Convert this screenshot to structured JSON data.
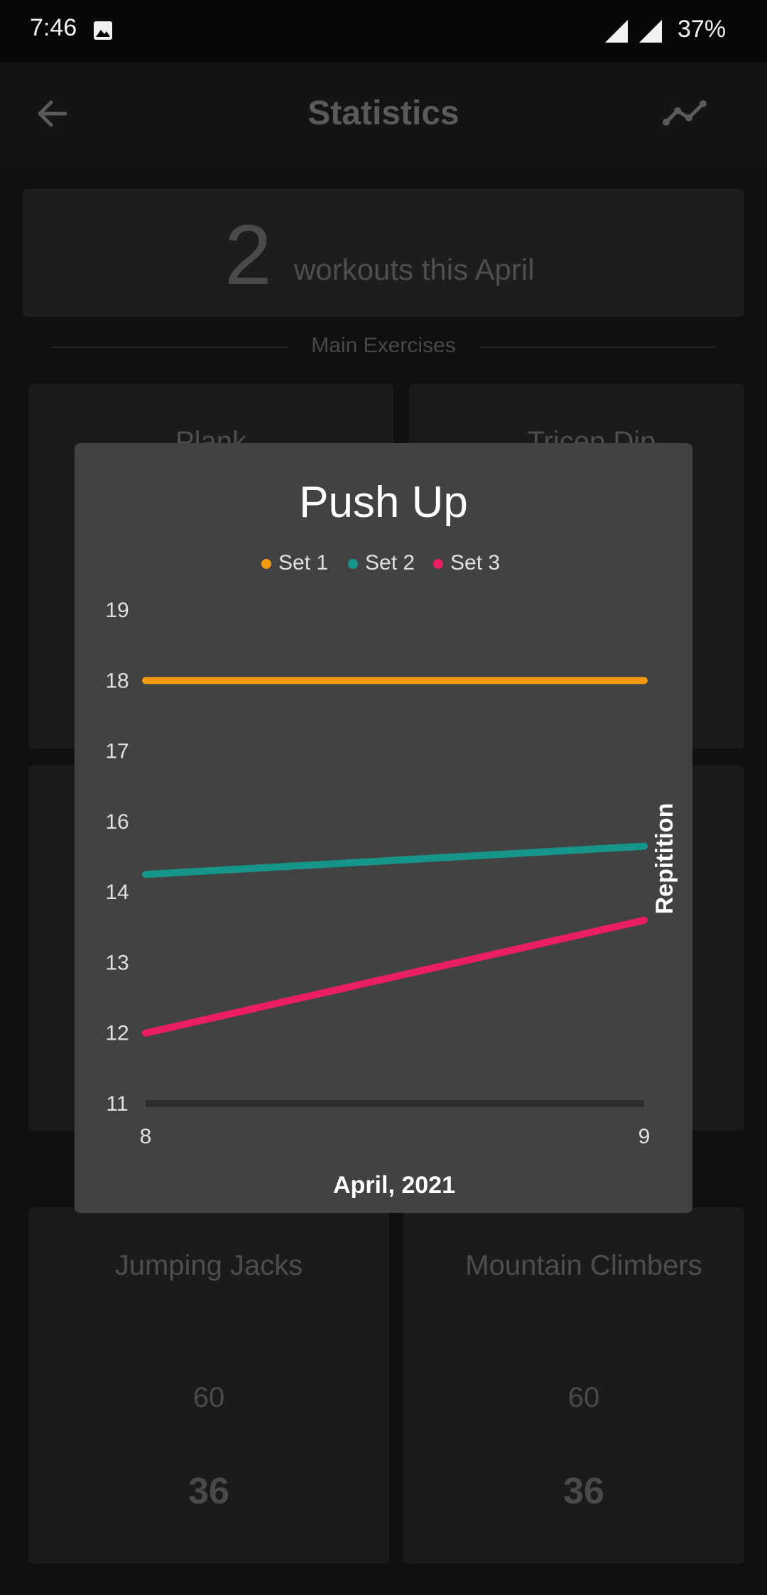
{
  "status_bar": {
    "time": "7:46",
    "battery": "37%"
  },
  "app_bar": {
    "title": "Statistics",
    "back_icon": "arrow-left-icon",
    "chart_icon": "line-chart-icon"
  },
  "summary": {
    "count": "2",
    "label": "workouts this April"
  },
  "section": {
    "label": "Main Exercises"
  },
  "exercises": [
    {
      "title": "Plank"
    },
    {
      "title": "Tricep Dip"
    },
    {
      "title": "Jumping Jacks",
      "value": "60",
      "best": "36"
    },
    {
      "title": "Mountain Climbers",
      "value": "60",
      "best": "36"
    }
  ],
  "dialog": {
    "title": "Push Up",
    "legend": [
      "Set 1",
      "Set 2",
      "Set 3"
    ]
  },
  "colors": {
    "set1": "#f39c12",
    "set2": "#16968a",
    "set3": "#e91e63",
    "dialog_bg": "#424242",
    "page_bg": "#101010"
  },
  "chart_data": {
    "type": "line",
    "title": "Push Up",
    "xlabel": "April, 2021",
    "ylabel": "Repitition",
    "x": [
      8,
      9
    ],
    "x_ticks": [
      "8",
      "9"
    ],
    "y_ticks": [
      "11",
      "12",
      "13",
      "14",
      "16",
      "17",
      "18",
      "19"
    ],
    "series": [
      {
        "name": "Set 1",
        "color": "#f39c12",
        "values": [
          18,
          18
        ]
      },
      {
        "name": "Set 2",
        "color": "#16968a",
        "values": [
          14.5,
          15.3
        ]
      },
      {
        "name": "Set 3",
        "color": "#e91e63",
        "values": [
          12,
          13.6
        ]
      }
    ],
    "legend_position": "top-center"
  }
}
